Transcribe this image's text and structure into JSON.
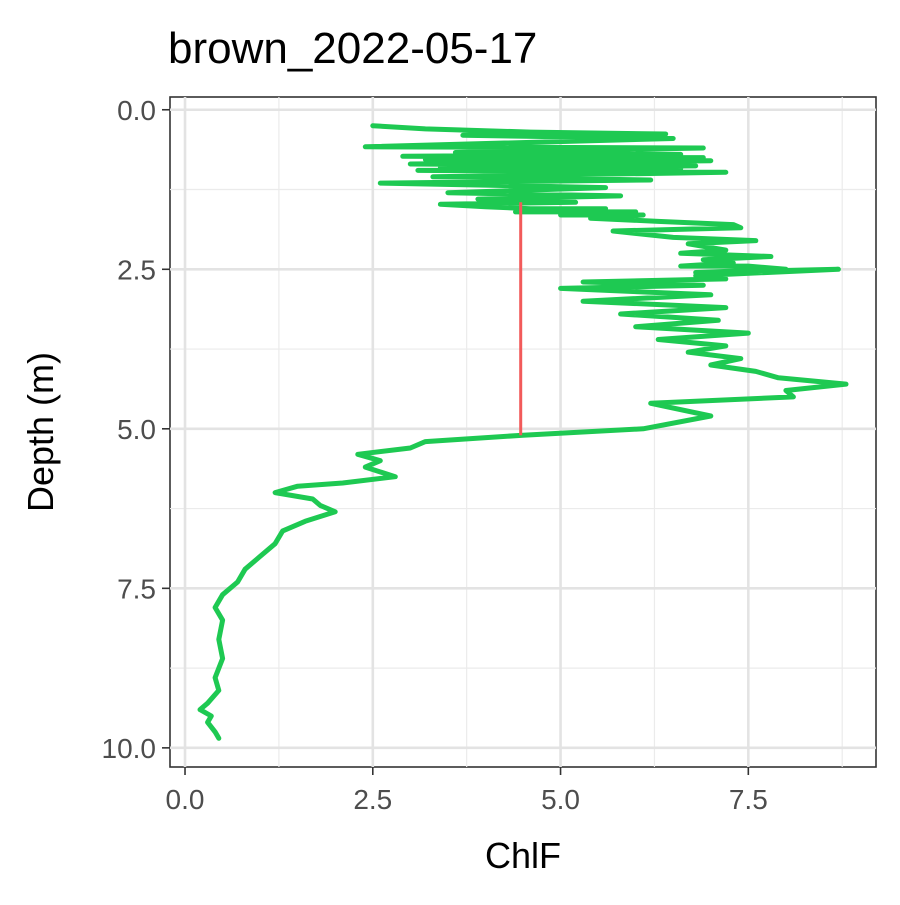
{
  "chart_data": {
    "type": "line",
    "title": "brown_2022-05-17",
    "xlabel": "ChlF",
    "ylabel": "Depth (m)",
    "xlim": [
      -0.2,
      9.2
    ],
    "ylim": [
      10.3,
      -0.2
    ],
    "y_reversed": true,
    "x_ticks": [
      "0.0",
      "2.5",
      "5.0",
      "7.5"
    ],
    "y_ticks": [
      "0.0",
      "2.5",
      "5.0",
      "7.5",
      "10.0"
    ],
    "grid": true,
    "legend": "none",
    "colors": {
      "profile": "#1ec952",
      "marker": "#f25a5a"
    },
    "series": [
      {
        "type": "line",
        "x": [
          2.5,
          3.2,
          4.6,
          6.4,
          3.7,
          6.5,
          2.4,
          6.9,
          3.6,
          6.6,
          2.9,
          6.9,
          3.2,
          7.0,
          3.0,
          6.8,
          3.4,
          6.6,
          3.1,
          7.2,
          3.3,
          6.2,
          2.6,
          5.6,
          3.5,
          5.8,
          3.9,
          5.2,
          3.4,
          4.0,
          4.6,
          5.6,
          4.4,
          6.0,
          5.0,
          6.1,
          5.4,
          6.3,
          7.3,
          7.4,
          5.7,
          6.5,
          7.6,
          6.7,
          7.2,
          6.6,
          7.8,
          6.9,
          7.3,
          6.6,
          7.5,
          8.0,
          6.8,
          8.7,
          6.8,
          7.2,
          5.3,
          6.9,
          5.0,
          7.0,
          5.3,
          7.2,
          5.8,
          7.1,
          6.0,
          7.5,
          6.3,
          7.2,
          6.7,
          7.4,
          7.0,
          7.6,
          7.9,
          8.8,
          8.0,
          8.1,
          6.2,
          7.0,
          6.1,
          4.5,
          3.2,
          3.0,
          2.3,
          2.6,
          2.4,
          2.8,
          2.1,
          1.5,
          1.2,
          1.7,
          1.8,
          2.0,
          1.6,
          1.3,
          1.2,
          1.0,
          0.8,
          0.7,
          0.5,
          0.4,
          0.5,
          0.45,
          0.5,
          0.4,
          0.45,
          0.3,
          0.2,
          0.35,
          0.3,
          0.4,
          0.45
        ],
        "y": [
          0.25,
          0.3,
          0.35,
          0.38,
          0.4,
          0.45,
          0.58,
          0.6,
          0.67,
          0.7,
          0.73,
          0.75,
          0.78,
          0.8,
          0.85,
          0.88,
          0.9,
          0.92,
          0.95,
          0.98,
          1.05,
          1.1,
          1.15,
          1.22,
          1.3,
          1.35,
          1.4,
          1.45,
          1.48,
          1.52,
          1.55,
          1.55,
          1.6,
          1.6,
          1.65,
          1.65,
          1.7,
          1.75,
          1.8,
          1.85,
          1.9,
          2.0,
          2.05,
          2.1,
          2.2,
          2.25,
          2.3,
          2.35,
          2.4,
          2.45,
          2.45,
          2.5,
          2.55,
          2.5,
          2.6,
          2.65,
          2.7,
          2.75,
          2.8,
          2.9,
          3.0,
          3.1,
          3.2,
          3.3,
          3.4,
          3.5,
          3.6,
          3.7,
          3.8,
          3.9,
          4.0,
          4.1,
          4.2,
          4.3,
          4.4,
          4.5,
          4.6,
          4.8,
          5.0,
          5.1,
          5.2,
          5.3,
          5.4,
          5.5,
          5.6,
          5.75,
          5.85,
          5.9,
          6.0,
          6.1,
          6.2,
          6.3,
          6.45,
          6.6,
          6.8,
          7.0,
          7.2,
          7.4,
          7.6,
          7.8,
          8.0,
          8.3,
          8.6,
          8.9,
          9.1,
          9.3,
          9.4,
          9.5,
          9.6,
          9.75,
          9.85
        ]
      },
      {
        "type": "segment",
        "x": [
          4.47,
          4.47
        ],
        "y": [
          1.45,
          5.1
        ]
      }
    ]
  }
}
